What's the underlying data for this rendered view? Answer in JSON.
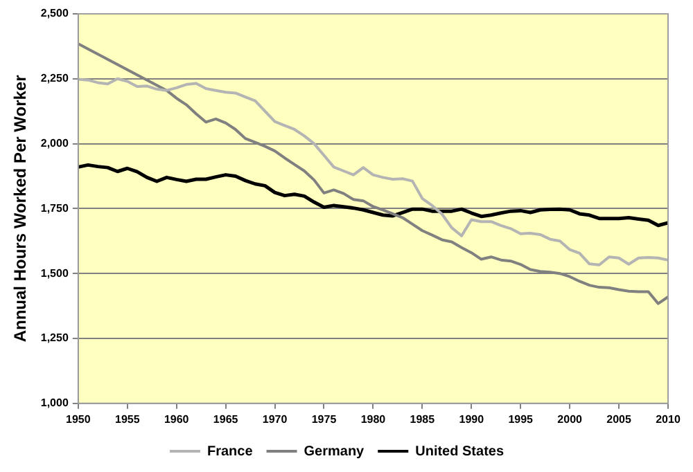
{
  "chart_data": {
    "type": "line",
    "ylabel": "Annual Hours Worked Per Worker",
    "x": [
      1950,
      1951,
      1952,
      1953,
      1954,
      1955,
      1956,
      1957,
      1958,
      1959,
      1960,
      1961,
      1962,
      1963,
      1964,
      1965,
      1966,
      1967,
      1968,
      1969,
      1970,
      1971,
      1972,
      1973,
      1974,
      1975,
      1976,
      1977,
      1978,
      1979,
      1980,
      1981,
      1982,
      1983,
      1984,
      1985,
      1986,
      1987,
      1988,
      1989,
      1990,
      1991,
      1992,
      1993,
      1994,
      1995,
      1996,
      1997,
      1998,
      1999,
      2000,
      2001,
      2002,
      2003,
      2004,
      2005,
      2006,
      2007,
      2008,
      2009,
      2010
    ],
    "series": [
      {
        "name": "France",
        "color": "#b4b4b4",
        "values": [
          2248,
          2245,
          2235,
          2230,
          2250,
          2240,
          2220,
          2222,
          2210,
          2205,
          2215,
          2228,
          2232,
          2212,
          2205,
          2198,
          2195,
          2180,
          2165,
          2125,
          2085,
          2070,
          2055,
          2030,
          2000,
          1955,
          1910,
          1895,
          1880,
          1908,
          1880,
          1870,
          1863,
          1865,
          1856,
          1789,
          1762,
          1729,
          1676,
          1645,
          1707,
          1700,
          1700,
          1685,
          1673,
          1653,
          1655,
          1650,
          1632,
          1625,
          1592,
          1578,
          1537,
          1533,
          1564,
          1560,
          1536,
          1560,
          1562,
          1560,
          1552
        ]
      },
      {
        "name": "Germany",
        "color": "#808080",
        "values": [
          2385,
          2365,
          2345,
          2325,
          2305,
          2285,
          2265,
          2245,
          2225,
          2205,
          2175,
          2150,
          2115,
          2083,
          2095,
          2080,
          2055,
          2020,
          2005,
          1990,
          1972,
          1945,
          1920,
          1895,
          1860,
          1810,
          1822,
          1808,
          1785,
          1780,
          1758,
          1745,
          1730,
          1715,
          1690,
          1665,
          1648,
          1630,
          1622,
          1600,
          1580,
          1555,
          1564,
          1552,
          1548,
          1535,
          1515,
          1508,
          1505,
          1500,
          1488,
          1470,
          1455,
          1447,
          1445,
          1438,
          1432,
          1430,
          1430,
          1384,
          1410
        ]
      },
      {
        "name": "United States",
        "color": "#000000",
        "values": [
          1910,
          1918,
          1912,
          1908,
          1893,
          1905,
          1892,
          1870,
          1855,
          1870,
          1862,
          1855,
          1863,
          1863,
          1872,
          1880,
          1875,
          1858,
          1845,
          1838,
          1812,
          1800,
          1805,
          1798,
          1775,
          1755,
          1762,
          1757,
          1752,
          1745,
          1735,
          1725,
          1722,
          1735,
          1748,
          1748,
          1740,
          1740,
          1740,
          1748,
          1733,
          1720,
          1725,
          1733,
          1740,
          1742,
          1735,
          1745,
          1747,
          1748,
          1745,
          1730,
          1725,
          1712,
          1712,
          1712,
          1715,
          1710,
          1705,
          1685,
          1695
        ]
      }
    ],
    "xlim": [
      1950,
      2010
    ],
    "xticks": [
      1950,
      1955,
      1960,
      1965,
      1970,
      1975,
      1980,
      1985,
      1990,
      1995,
      2000,
      2005,
      2010
    ],
    "ylim": [
      1000,
      2500
    ],
    "yticks": [
      {
        "value": 1000,
        "label": "1,000"
      },
      {
        "value": 1250,
        "label": "1,250"
      },
      {
        "value": 1500,
        "label": "1,500"
      },
      {
        "value": 1750,
        "label": "1,750"
      },
      {
        "value": 2000,
        "label": "2,000"
      },
      {
        "value": 2250,
        "label": "2,250"
      },
      {
        "value": 2500,
        "label": "2,500"
      }
    ],
    "grid": "y",
    "legend": "bottom",
    "marker": "none",
    "line_style": "solid"
  }
}
